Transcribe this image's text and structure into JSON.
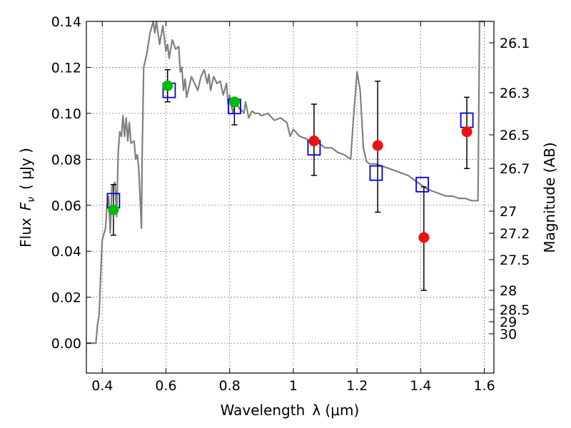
{
  "chart_data": {
    "type": "scatter",
    "title": "",
    "xlabel": "Wavelength",
    "xlabel_symbol": "λ (μm)",
    "ylabel": "Flux",
    "ylabel_symbol": "F",
    "ylabel_subscript": "ν",
    "ylabel_unit": "( μJy )",
    "y2label": "Magnitude (AB)",
    "xlim": [
      0.35,
      1.63
    ],
    "ylim": [
      -0.013,
      0.14
    ],
    "grid": true,
    "x_ticks": [
      {
        "v": 0.4,
        "label": "0.4"
      },
      {
        "v": 0.6,
        "label": "0.6"
      },
      {
        "v": 0.8,
        "label": "0.8"
      },
      {
        "v": 1.0,
        "label": "1"
      },
      {
        "v": 1.2,
        "label": "1.2"
      },
      {
        "v": 1.4,
        "label": "1.4"
      },
      {
        "v": 1.6,
        "label": "1.6"
      }
    ],
    "y_ticks": [
      {
        "v": 0.0,
        "label": "0.00"
      },
      {
        "v": 0.02,
        "label": "0.02"
      },
      {
        "v": 0.04,
        "label": "0.04"
      },
      {
        "v": 0.06,
        "label": "0.06"
      },
      {
        "v": 0.08,
        "label": "0.08"
      },
      {
        "v": 0.1,
        "label": "0.10"
      },
      {
        "v": 0.12,
        "label": "0.12"
      },
      {
        "v": 0.14,
        "label": "0.14"
      }
    ],
    "mag_ticks": [
      "26.1",
      "26.3",
      "26.5",
      "26.7",
      "27",
      "27.2",
      "27.5",
      "28",
      "28.5",
      "29",
      "30"
    ],
    "colors": {
      "spectrum": "#808080",
      "model_box": "#0000cc",
      "green_point": "#00bb00",
      "red_point": "#ee1111",
      "errorbar": "#000000"
    },
    "spectrum": {
      "name": "",
      "points": [
        [
          0.35,
          0.0
        ],
        [
          0.38,
          0.0
        ],
        [
          0.385,
          0.008
        ],
        [
          0.39,
          0.012
        ],
        [
          0.395,
          0.03
        ],
        [
          0.4,
          0.045
        ],
        [
          0.41,
          0.05
        ],
        [
          0.415,
          0.06
        ],
        [
          0.42,
          0.064
        ],
        [
          0.425,
          0.048
        ],
        [
          0.43,
          0.068
        ],
        [
          0.44,
          0.07
        ],
        [
          0.445,
          0.055
        ],
        [
          0.45,
          0.083
        ],
        [
          0.455,
          0.092
        ],
        [
          0.46,
          0.09
        ],
        [
          0.465,
          0.099
        ],
        [
          0.47,
          0.09
        ],
        [
          0.475,
          0.098
        ],
        [
          0.48,
          0.088
        ],
        [
          0.485,
          0.096
        ],
        [
          0.49,
          0.087
        ],
        [
          0.5,
          0.088
        ],
        [
          0.505,
          0.08
        ],
        [
          0.51,
          0.082
        ],
        [
          0.515,
          0.075
        ],
        [
          0.52,
          0.06
        ],
        [
          0.523,
          0.05
        ],
        [
          0.525,
          0.08
        ],
        [
          0.53,
          0.12
        ],
        [
          0.54,
          0.126
        ],
        [
          0.55,
          0.135
        ],
        [
          0.56,
          0.14
        ],
        [
          0.565,
          0.135
        ],
        [
          0.57,
          0.14
        ],
        [
          0.58,
          0.13
        ],
        [
          0.59,
          0.138
        ],
        [
          0.6,
          0.127
        ],
        [
          0.605,
          0.13
        ],
        [
          0.61,
          0.124
        ],
        [
          0.62,
          0.132
        ],
        [
          0.63,
          0.128
        ],
        [
          0.64,
          0.129
        ],
        [
          0.645,
          0.118
        ],
        [
          0.65,
          0.12
        ],
        [
          0.655,
          0.11
        ],
        [
          0.66,
          0.115
        ],
        [
          0.665,
          0.107
        ],
        [
          0.67,
          0.11
        ],
        [
          0.68,
          0.116
        ],
        [
          0.69,
          0.113
        ],
        [
          0.7,
          0.11
        ],
        [
          0.71,
          0.116
        ],
        [
          0.72,
          0.119
        ],
        [
          0.73,
          0.113
        ],
        [
          0.735,
          0.117
        ],
        [
          0.74,
          0.11
        ],
        [
          0.75,
          0.116
        ],
        [
          0.76,
          0.113
        ],
        [
          0.77,
          0.114
        ],
        [
          0.78,
          0.108
        ],
        [
          0.79,
          0.113
        ],
        [
          0.795,
          0.104
        ],
        [
          0.8,
          0.108
        ],
        [
          0.81,
          0.1
        ],
        [
          0.82,
          0.106
        ],
        [
          0.83,
          0.102
        ],
        [
          0.84,
          0.101
        ],
        [
          0.845,
          0.1
        ],
        [
          0.85,
          0.105
        ],
        [
          0.86,
          0.098
        ],
        [
          0.87,
          0.101
        ],
        [
          0.88,
          0.1
        ],
        [
          0.89,
          0.1
        ],
        [
          0.9,
          0.099
        ],
        [
          0.92,
          0.1
        ],
        [
          0.94,
          0.097
        ],
        [
          0.96,
          0.098
        ],
        [
          0.98,
          0.096
        ],
        [
          0.99,
          0.09
        ],
        [
          1.0,
          0.093
        ],
        [
          1.02,
          0.09
        ],
        [
          1.04,
          0.089
        ],
        [
          1.06,
          0.087
        ],
        [
          1.08,
          0.087
        ],
        [
          1.1,
          0.085
        ],
        [
          1.12,
          0.085
        ],
        [
          1.14,
          0.083
        ],
        [
          1.16,
          0.082
        ],
        [
          1.18,
          0.08
        ],
        [
          1.19,
          0.1
        ],
        [
          1.2,
          0.118
        ],
        [
          1.21,
          0.11
        ],
        [
          1.22,
          0.085
        ],
        [
          1.23,
          0.079
        ],
        [
          1.24,
          0.078
        ],
        [
          1.26,
          0.078
        ],
        [
          1.28,
          0.077
        ],
        [
          1.3,
          0.076
        ],
        [
          1.32,
          0.075
        ],
        [
          1.34,
          0.074
        ],
        [
          1.36,
          0.073
        ],
        [
          1.38,
          0.071
        ],
        [
          1.4,
          0.069
        ],
        [
          1.42,
          0.067
        ],
        [
          1.44,
          0.066
        ],
        [
          1.46,
          0.065
        ],
        [
          1.48,
          0.064
        ],
        [
          1.5,
          0.064
        ],
        [
          1.52,
          0.063
        ],
        [
          1.54,
          0.063
        ],
        [
          1.56,
          0.062
        ],
        [
          1.58,
          0.062
        ],
        [
          1.585,
          0.14
        ],
        [
          1.6,
          0.14
        ]
      ]
    },
    "series": [
      {
        "marker": "box",
        "color_key": "model_box",
        "points": [
          {
            "x": 0.435,
            "y": 0.062
          },
          {
            "x": 0.61,
            "y": 0.11
          },
          {
            "x": 0.815,
            "y": 0.103
          },
          {
            "x": 1.065,
            "y": 0.085
          },
          {
            "x": 1.26,
            "y": 0.074
          },
          {
            "x": 1.405,
            "y": 0.069
          },
          {
            "x": 1.545,
            "y": 0.097
          }
        ]
      },
      {
        "marker": "circle",
        "color_key": "green_point",
        "points": [
          {
            "x": 0.435,
            "y": 0.058
          },
          {
            "x": 0.605,
            "y": 0.112
          },
          {
            "x": 0.815,
            "y": 0.105
          }
        ]
      },
      {
        "marker": "circle",
        "color_key": "red_point",
        "points": [
          {
            "x": 1.065,
            "y": 0.088
          },
          {
            "x": 1.265,
            "y": 0.086
          },
          {
            "x": 1.41,
            "y": 0.046
          },
          {
            "x": 1.545,
            "y": 0.092
          }
        ]
      }
    ],
    "errorbars": [
      {
        "x": 0.435,
        "y": 0.058,
        "lo": 0.047,
        "hi": 0.069
      },
      {
        "x": 0.605,
        "y": 0.112,
        "lo": 0.105,
        "hi": 0.119
      },
      {
        "x": 0.815,
        "y": 0.105,
        "lo": 0.095,
        "hi": 0.103
      },
      {
        "x": 1.065,
        "y": 0.088,
        "lo": 0.073,
        "hi": 0.104
      },
      {
        "x": 1.265,
        "y": 0.086,
        "lo": 0.057,
        "hi": 0.114
      },
      {
        "x": 1.41,
        "y": 0.046,
        "lo": 0.023,
        "hi": 0.068
      },
      {
        "x": 1.545,
        "y": 0.092,
        "lo": 0.076,
        "hi": 0.107
      }
    ]
  }
}
